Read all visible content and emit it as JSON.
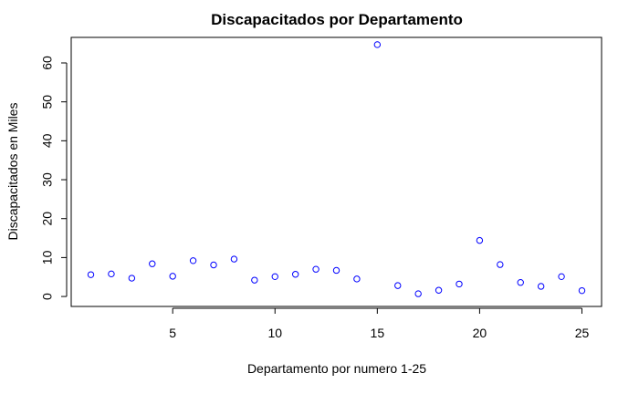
{
  "chart_data": {
    "type": "scatter",
    "title": "Discapacitados por Departamento",
    "xlabel": "Departamento por numero 1-25",
    "ylabel": "Discapacitados en Miles",
    "xlim": [
      0.04,
      25.96
    ],
    "ylim": [
      -2.56,
      66.56
    ],
    "xticks": [
      5,
      10,
      15,
      20,
      25
    ],
    "yticks": [
      0,
      10,
      20,
      30,
      40,
      50,
      60
    ],
    "point_color": "#0000ff",
    "grid": false,
    "x": [
      1,
      2,
      3,
      4,
      5,
      6,
      7,
      8,
      9,
      10,
      11,
      12,
      13,
      14,
      15,
      16,
      17,
      18,
      19,
      20,
      21,
      22,
      23,
      24,
      25
    ],
    "y": [
      5.6,
      5.8,
      4.7,
      8.4,
      5.2,
      9.2,
      8.1,
      9.6,
      4.2,
      5.1,
      5.7,
      7.0,
      6.7,
      4.5,
      64.7,
      2.8,
      0.7,
      1.6,
      3.2,
      14.4,
      8.2,
      3.6,
      2.6,
      5.1,
      1.5
    ]
  }
}
